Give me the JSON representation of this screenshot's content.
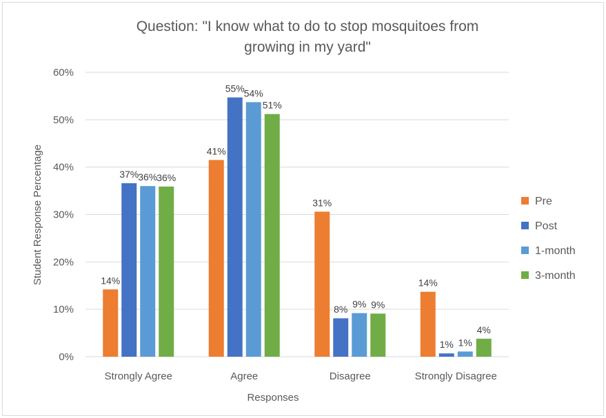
{
  "chart_data": {
    "type": "bar",
    "title": "Question: \"I know what to do to stop mosquitoes from growing in my yard\"",
    "title_lines": [
      "Question: \"I know what to do to stop mosquitoes from",
      "growing in my yard\""
    ],
    "xlabel": "Responses",
    "ylabel": "Student Response Percentage",
    "categories": [
      "Strongly Agree",
      "Agree",
      "Disagree",
      "Strongly Disagree"
    ],
    "ylim": [
      0,
      60
    ],
    "yticks": [
      0,
      10,
      20,
      30,
      40,
      50,
      60
    ],
    "ytick_labels": [
      "0%",
      "10%",
      "20%",
      "30%",
      "40%",
      "50%",
      "60%"
    ],
    "grid": true,
    "legend_position": "right",
    "series": [
      {
        "name": "Pre",
        "color": "#ed7d31",
        "values": [
          14.2,
          41.5,
          30.6,
          13.7
        ],
        "labels": [
          "14%",
          "41%",
          "31%",
          "14%"
        ]
      },
      {
        "name": "Post",
        "color": "#4472c4",
        "values": [
          36.6,
          54.7,
          8.1,
          0.7
        ],
        "labels": [
          "37%",
          "55%",
          "8%",
          "1%"
        ]
      },
      {
        "name": "1-month",
        "color": "#5b9bd5",
        "values": [
          36.0,
          53.7,
          9.2,
          1.1
        ],
        "labels": [
          "36%",
          "54%",
          "9%",
          "1%"
        ]
      },
      {
        "name": "3-month",
        "color": "#70ad47",
        "values": [
          35.9,
          51.2,
          9.1,
          3.8
        ],
        "labels": [
          "36%",
          "51%",
          "9%",
          "4%"
        ]
      }
    ]
  }
}
